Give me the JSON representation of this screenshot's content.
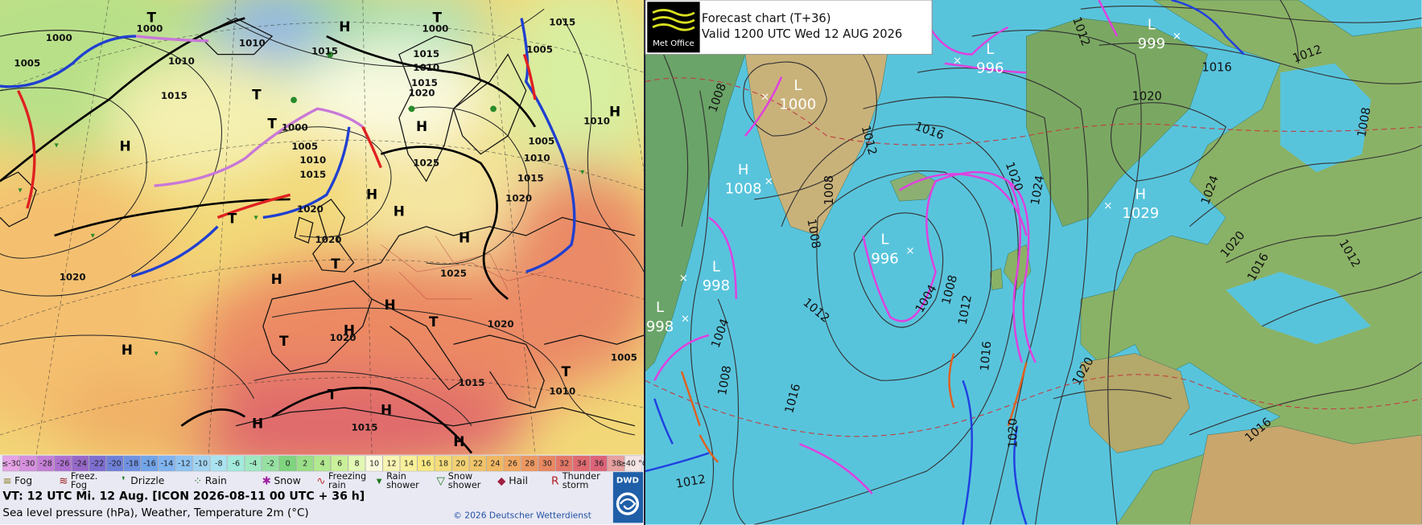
{
  "left": {
    "pressure_labels": [
      1000,
      1000,
      1010,
      1000,
      1015,
      1015,
      1005,
      1010,
      1015,
      1010,
      1005,
      1015,
      1020,
      1015,
      1000,
      1005,
      1010,
      1015,
      1025,
      1005,
      1010,
      1015,
      1020,
      1010,
      1020,
      1020,
      1020,
      1025,
      1020,
      1020,
      1015,
      1010,
      1005,
      1015
    ],
    "centers": [
      "T",
      "T",
      "H",
      "T",
      "T",
      "H",
      "H",
      "H",
      "H",
      "T",
      "T",
      "H",
      "H",
      "T",
      "H",
      "T",
      "H",
      "T",
      "H",
      "H",
      "H",
      "T",
      "H",
      "H"
    ],
    "temperature_legend": [
      {
        "label": "≤-30",
        "color": "#e6a3e6"
      },
      {
        "label": -30,
        "color": "#d690de"
      },
      {
        "label": -28,
        "color": "#c47fd6"
      },
      {
        "label": -26,
        "color": "#ae70d0"
      },
      {
        "label": -24,
        "color": "#9668c8"
      },
      {
        "label": -22,
        "color": "#7e6ed0"
      },
      {
        "label": -20,
        "color": "#6f80d8"
      },
      {
        "label": -18,
        "color": "#6f92e0"
      },
      {
        "label": -16,
        "color": "#72a4e8"
      },
      {
        "label": -14,
        "color": "#80b4f0"
      },
      {
        "label": -12,
        "color": "#90c4f2"
      },
      {
        "label": -10,
        "color": "#a2d4f2"
      },
      {
        "label": -8,
        "color": "#aae2f0"
      },
      {
        "label": -6,
        "color": "#a2eadc"
      },
      {
        "label": -4,
        "color": "#a0e8c2"
      },
      {
        "label": -2,
        "color": "#96e0a2"
      },
      {
        "label": 0,
        "color": "#7fd47f"
      },
      {
        "label": 2,
        "color": "#9ade88"
      },
      {
        "label": 4,
        "color": "#b2e890"
      },
      {
        "label": 6,
        "color": "#caf09a"
      },
      {
        "label": 8,
        "color": "#e2f8b4"
      },
      {
        "label": 10,
        "color": "#fafadc"
      },
      {
        "label": 12,
        "color": "#f8f4b2"
      },
      {
        "label": 14,
        "color": "#f8f09a"
      },
      {
        "label": 16,
        "color": "#f8e882"
      },
      {
        "label": 18,
        "color": "#f4dc7a"
      },
      {
        "label": 20,
        "color": "#f2d072"
      },
      {
        "label": 22,
        "color": "#f0c46a"
      },
      {
        "label": 24,
        "color": "#f0b862"
      },
      {
        "label": 26,
        "color": "#f0a862"
      },
      {
        "label": 28,
        "color": "#ec9862"
      },
      {
        "label": 30,
        "color": "#e88862"
      },
      {
        "label": 32,
        "color": "#e47868"
      },
      {
        "label": 34,
        "color": "#e06a70"
      },
      {
        "label": 36,
        "color": "#dc6478"
      },
      {
        "label": 38,
        "color": "#e8a0a0"
      },
      {
        "label": "≥40 °C",
        "color": "#f4e4e4"
      }
    ],
    "weather_legend": [
      [
        "Fog"
      ],
      [
        "Freez.",
        "Fog"
      ],
      [
        "Drizzle"
      ],
      [
        "Rain"
      ],
      [
        "Snow"
      ],
      [
        "Freezing",
        "rain"
      ],
      [
        "Rain",
        "shower"
      ],
      [
        "Snow",
        "shower"
      ],
      [
        "Hail"
      ],
      [
        "Thunder",
        "storm"
      ]
    ],
    "valid_time": "VT: 12 UTC Mi.  12 Aug. [ICON 2026-08-11  00 UTC + 36 h]",
    "subtitle": "Sea level pressure (hPa), Weather, Temperature 2m (°C)",
    "copyright": "© 2026 Deutscher Wetterdienst",
    "logo": "DWD"
  },
  "right": {
    "logo": "Met Office",
    "title": "Forecast chart (T+36)",
    "valid": "Valid 1200 UTC Wed 12 AUG 2026",
    "centers": [
      {
        "type": "L",
        "pressure": 1000
      },
      {
        "type": "H",
        "pressure": 1008
      },
      {
        "type": "L",
        "pressure": 996
      },
      {
        "type": "L",
        "pressure": 999
      },
      {
        "type": "H",
        "pressure": 1029
      },
      {
        "type": "L",
        "pressure": 996
      },
      {
        "type": "L",
        "pressure": 998
      },
      {
        "type": "L",
        "pressure": 998
      }
    ],
    "isobar_labels": [
      1008,
      1012,
      1016,
      1012,
      1008,
      1020,
      1016,
      1012,
      1008,
      1008,
      1020,
      1024,
      1024,
      1020,
      1016,
      1012,
      1012,
      1004,
      1008,
      1012,
      1016,
      1004,
      1008,
      1016,
      1020,
      1020,
      1012,
      1016
    ]
  }
}
